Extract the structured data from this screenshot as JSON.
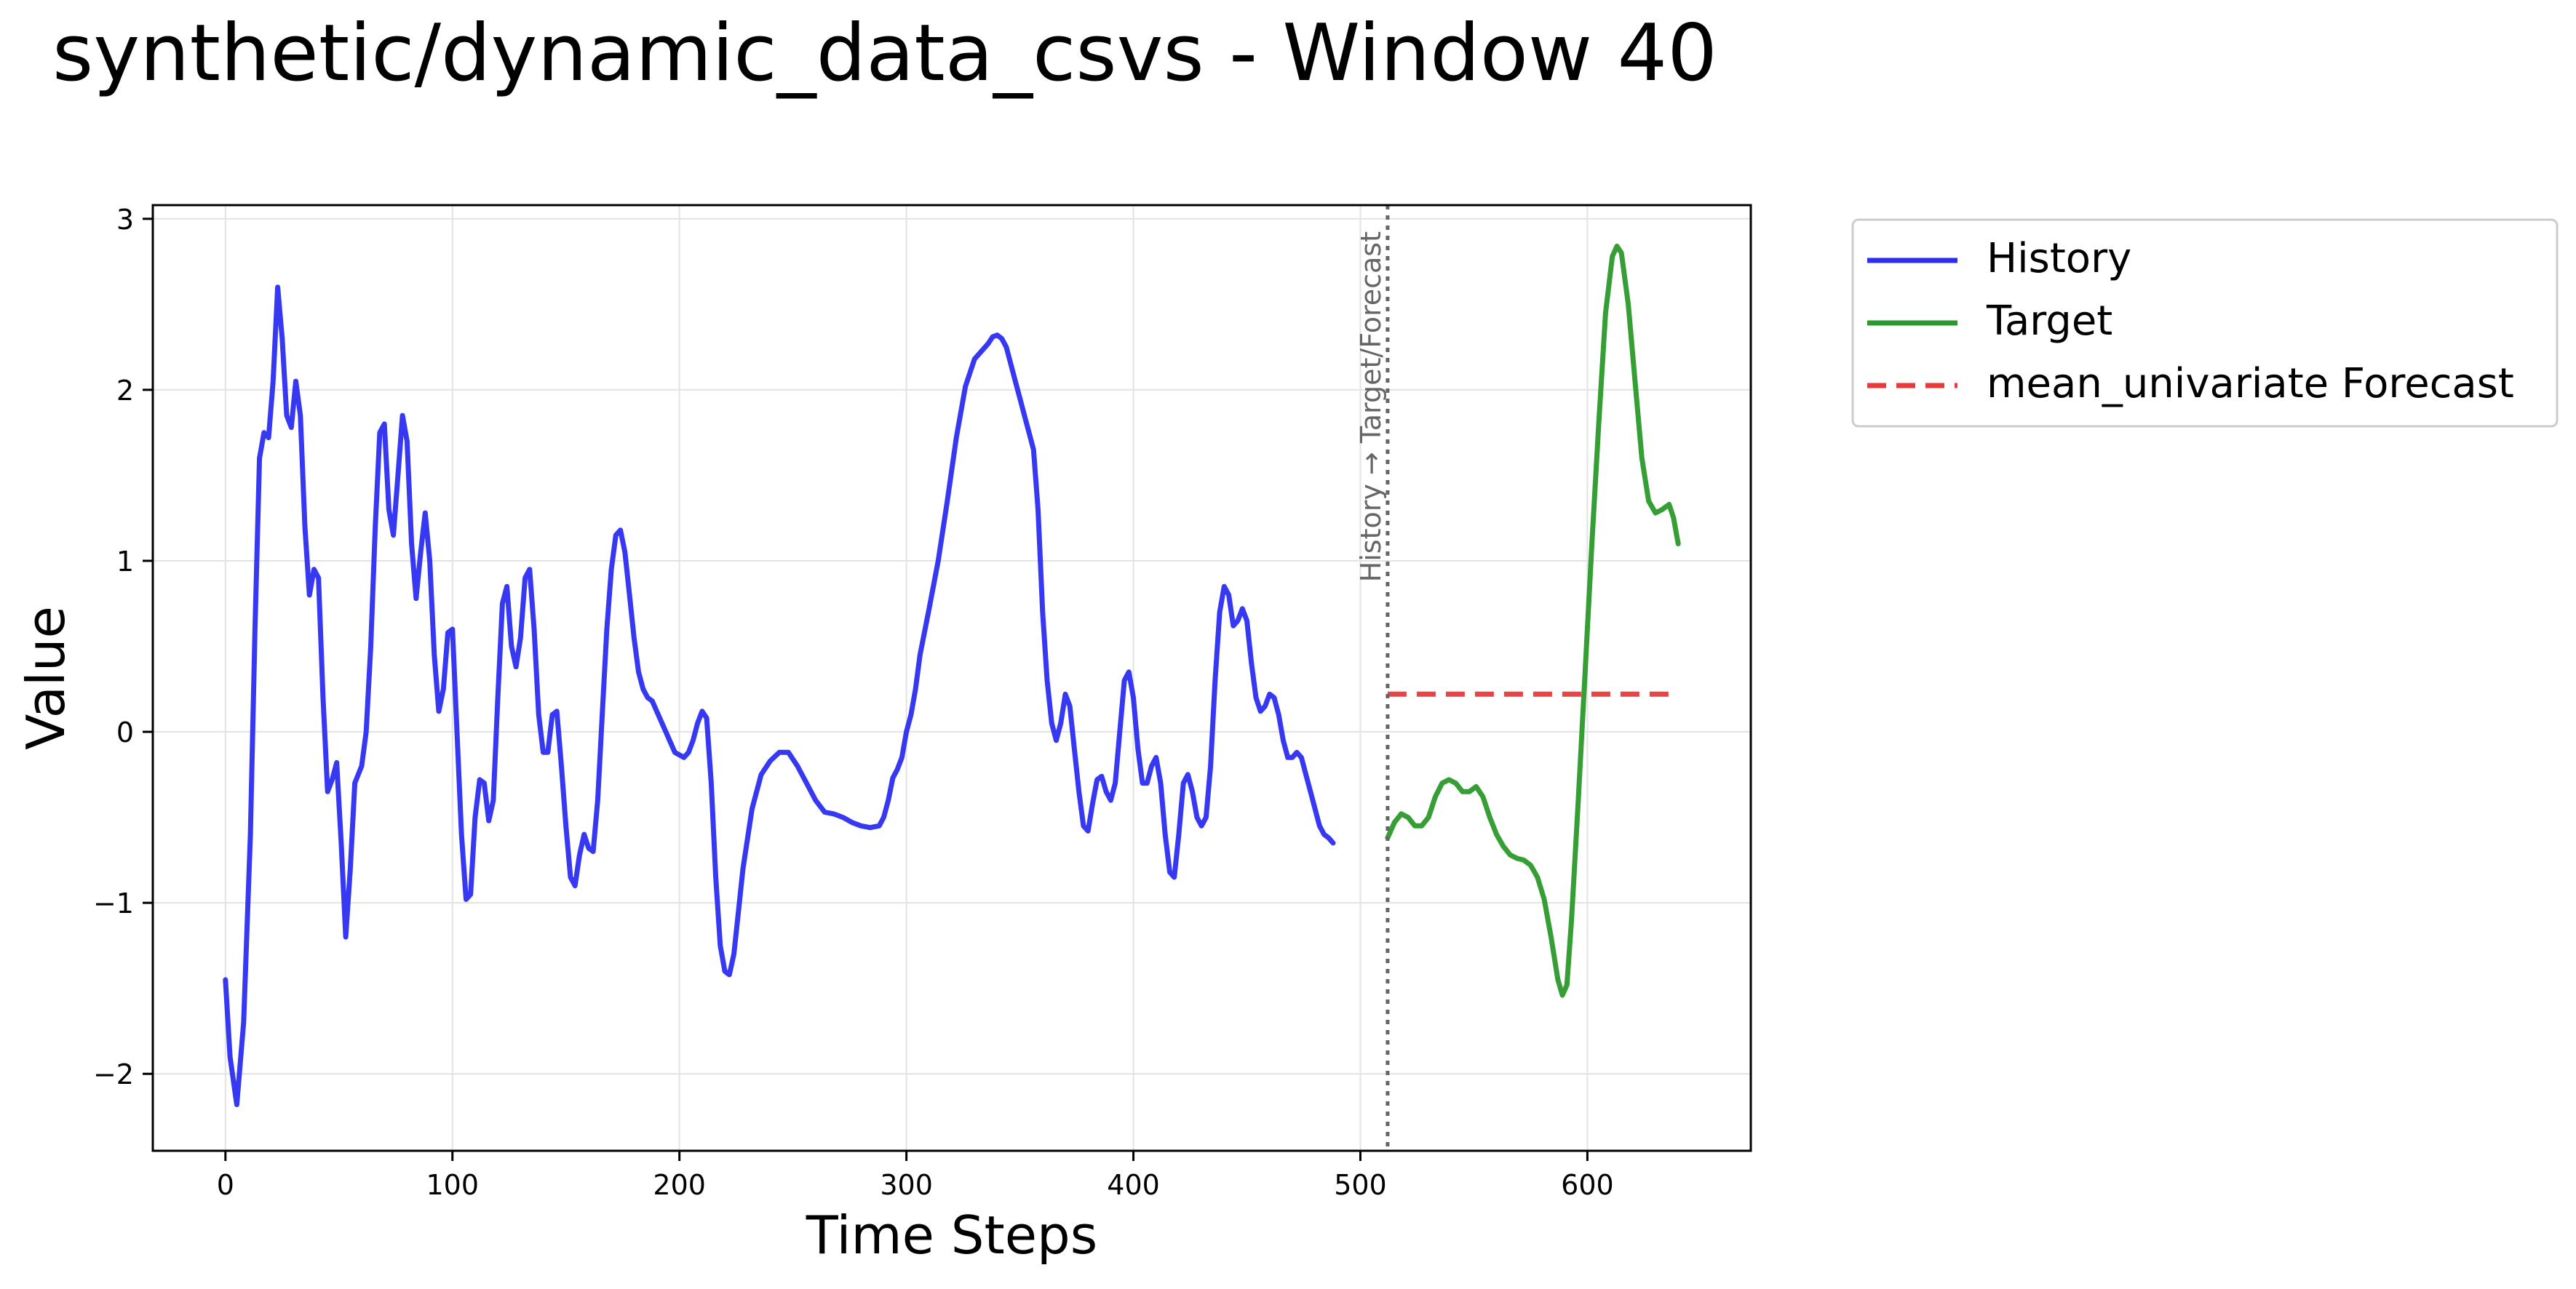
{
  "chart_data": {
    "type": "line",
    "title": "synthetic/dynamic_data_csvs - Window 40",
    "xlabel": "Time Steps",
    "ylabel": "Value",
    "xlim": [
      -32,
      672
    ],
    "ylim": [
      -2.45,
      3.08
    ],
    "xticks": [
      0,
      100,
      200,
      300,
      400,
      500,
      600
    ],
    "yticks": [
      -2,
      -1,
      0,
      1,
      2,
      3
    ],
    "xtick_labels": [
      "0",
      "100",
      "200",
      "300",
      "400",
      "500",
      "600"
    ],
    "ytick_labels": [
      "−2",
      "−1",
      "0",
      "1",
      "2",
      "3"
    ],
    "grid": true,
    "legend_position": "outside-top-right",
    "divider": {
      "x": 512,
      "label": "History → Target/Forecast",
      "color": "#666666"
    },
    "series": [
      {
        "name": "History",
        "color": "#2b2ef0",
        "style": "solid",
        "points": [
          [
            0,
            -1.45
          ],
          [
            2,
            -1.9
          ],
          [
            5,
            -2.18
          ],
          [
            8,
            -1.7
          ],
          [
            11,
            -0.6
          ],
          [
            13,
            0.6
          ],
          [
            15,
            1.6
          ],
          [
            17,
            1.75
          ],
          [
            19,
            1.72
          ],
          [
            21,
            2.05
          ],
          [
            23,
            2.6
          ],
          [
            25,
            2.3
          ],
          [
            27,
            1.85
          ],
          [
            29,
            1.78
          ],
          [
            31,
            2.05
          ],
          [
            33,
            1.85
          ],
          [
            35,
            1.2
          ],
          [
            37,
            0.8
          ],
          [
            39,
            0.95
          ],
          [
            41,
            0.9
          ],
          [
            43,
            0.2
          ],
          [
            45,
            -0.35
          ],
          [
            47,
            -0.28
          ],
          [
            49,
            -0.18
          ],
          [
            51,
            -0.65
          ],
          [
            53,
            -1.2
          ],
          [
            55,
            -0.8
          ],
          [
            57,
            -0.3
          ],
          [
            60,
            -0.2
          ],
          [
            62,
            0.0
          ],
          [
            64,
            0.5
          ],
          [
            66,
            1.2
          ],
          [
            68,
            1.75
          ],
          [
            70,
            1.8
          ],
          [
            72,
            1.3
          ],
          [
            74,
            1.15
          ],
          [
            76,
            1.5
          ],
          [
            78,
            1.85
          ],
          [
            80,
            1.7
          ],
          [
            82,
            1.1
          ],
          [
            84,
            0.78
          ],
          [
            86,
            1.05
          ],
          [
            88,
            1.28
          ],
          [
            90,
            1.0
          ],
          [
            92,
            0.45
          ],
          [
            94,
            0.12
          ],
          [
            96,
            0.25
          ],
          [
            98,
            0.58
          ],
          [
            100,
            0.6
          ],
          [
            102,
            0.0
          ],
          [
            104,
            -0.6
          ],
          [
            106,
            -0.98
          ],
          [
            108,
            -0.95
          ],
          [
            110,
            -0.5
          ],
          [
            112,
            -0.28
          ],
          [
            114,
            -0.3
          ],
          [
            116,
            -0.52
          ],
          [
            118,
            -0.4
          ],
          [
            120,
            0.2
          ],
          [
            122,
            0.75
          ],
          [
            124,
            0.85
          ],
          [
            126,
            0.5
          ],
          [
            128,
            0.38
          ],
          [
            130,
            0.55
          ],
          [
            132,
            0.9
          ],
          [
            134,
            0.95
          ],
          [
            136,
            0.6
          ],
          [
            138,
            0.1
          ],
          [
            140,
            -0.12
          ],
          [
            142,
            -0.12
          ],
          [
            144,
            0.1
          ],
          [
            146,
            0.12
          ],
          [
            148,
            -0.2
          ],
          [
            150,
            -0.55
          ],
          [
            152,
            -0.85
          ],
          [
            154,
            -0.9
          ],
          [
            156,
            -0.72
          ],
          [
            158,
            -0.6
          ],
          [
            160,
            -0.68
          ],
          [
            162,
            -0.7
          ],
          [
            164,
            -0.4
          ],
          [
            166,
            0.1
          ],
          [
            168,
            0.6
          ],
          [
            170,
            0.95
          ],
          [
            172,
            1.15
          ],
          [
            174,
            1.18
          ],
          [
            176,
            1.05
          ],
          [
            178,
            0.8
          ],
          [
            180,
            0.55
          ],
          [
            182,
            0.35
          ],
          [
            184,
            0.25
          ],
          [
            186,
            0.2
          ],
          [
            188,
            0.18
          ],
          [
            190,
            0.12
          ],
          [
            194,
            0.0
          ],
          [
            198,
            -0.12
          ],
          [
            202,
            -0.15
          ],
          [
            204,
            -0.12
          ],
          [
            206,
            -0.05
          ],
          [
            208,
            0.05
          ],
          [
            210,
            0.12
          ],
          [
            212,
            0.08
          ],
          [
            214,
            -0.3
          ],
          [
            216,
            -0.85
          ],
          [
            218,
            -1.25
          ],
          [
            220,
            -1.4
          ],
          [
            222,
            -1.42
          ],
          [
            224,
            -1.3
          ],
          [
            226,
            -1.05
          ],
          [
            228,
            -0.8
          ],
          [
            232,
            -0.45
          ],
          [
            236,
            -0.25
          ],
          [
            240,
            -0.17
          ],
          [
            244,
            -0.12
          ],
          [
            248,
            -0.12
          ],
          [
            252,
            -0.2
          ],
          [
            256,
            -0.3
          ],
          [
            260,
            -0.4
          ],
          [
            264,
            -0.47
          ],
          [
            268,
            -0.48
          ],
          [
            272,
            -0.5
          ],
          [
            276,
            -0.53
          ],
          [
            280,
            -0.55
          ],
          [
            284,
            -0.56
          ],
          [
            288,
            -0.55
          ],
          [
            290,
            -0.5
          ],
          [
            292,
            -0.4
          ],
          [
            294,
            -0.27
          ],
          [
            296,
            -0.22
          ],
          [
            298,
            -0.15
          ],
          [
            300,
            -0.0
          ],
          [
            302,
            0.1
          ],
          [
            304,
            0.25
          ],
          [
            306,
            0.45
          ],
          [
            310,
            0.72
          ],
          [
            314,
            1.0
          ],
          [
            318,
            1.35
          ],
          [
            322,
            1.72
          ],
          [
            326,
            2.02
          ],
          [
            330,
            2.18
          ],
          [
            334,
            2.24
          ],
          [
            336,
            2.27
          ],
          [
            338,
            2.31
          ],
          [
            340,
            2.32
          ],
          [
            342,
            2.3
          ],
          [
            344,
            2.25
          ],
          [
            346,
            2.15
          ],
          [
            348,
            2.05
          ],
          [
            350,
            1.95
          ],
          [
            352,
            1.85
          ],
          [
            354,
            1.75
          ],
          [
            356,
            1.65
          ],
          [
            358,
            1.3
          ],
          [
            360,
            0.7
          ],
          [
            362,
            0.3
          ],
          [
            364,
            0.05
          ],
          [
            366,
            -0.05
          ],
          [
            368,
            0.05
          ],
          [
            370,
            0.22
          ],
          [
            372,
            0.15
          ],
          [
            374,
            -0.1
          ],
          [
            376,
            -0.35
          ],
          [
            378,
            -0.55
          ],
          [
            380,
            -0.58
          ],
          [
            382,
            -0.42
          ],
          [
            384,
            -0.28
          ],
          [
            386,
            -0.26
          ],
          [
            388,
            -0.35
          ],
          [
            390,
            -0.4
          ],
          [
            392,
            -0.3
          ],
          [
            394,
            0.0
          ],
          [
            396,
            0.3
          ],
          [
            398,
            0.35
          ],
          [
            400,
            0.2
          ],
          [
            402,
            -0.1
          ],
          [
            404,
            -0.3
          ],
          [
            406,
            -0.3
          ],
          [
            408,
            -0.2
          ],
          [
            410,
            -0.15
          ],
          [
            412,
            -0.3
          ],
          [
            414,
            -0.6
          ],
          [
            416,
            -0.82
          ],
          [
            418,
            -0.85
          ],
          [
            420,
            -0.6
          ],
          [
            422,
            -0.3
          ],
          [
            424,
            -0.25
          ],
          [
            426,
            -0.35
          ],
          [
            428,
            -0.5
          ],
          [
            430,
            -0.55
          ],
          [
            432,
            -0.5
          ],
          [
            434,
            -0.2
          ],
          [
            436,
            0.3
          ],
          [
            438,
            0.7
          ],
          [
            440,
            0.85
          ],
          [
            442,
            0.8
          ],
          [
            444,
            0.62
          ],
          [
            446,
            0.65
          ],
          [
            448,
            0.72
          ],
          [
            450,
            0.65
          ],
          [
            452,
            0.4
          ],
          [
            454,
            0.2
          ],
          [
            456,
            0.12
          ],
          [
            458,
            0.15
          ],
          [
            460,
            0.22
          ],
          [
            462,
            0.2
          ],
          [
            464,
            0.1
          ],
          [
            466,
            -0.05
          ],
          [
            468,
            -0.15
          ],
          [
            470,
            -0.15
          ],
          [
            472,
            -0.12
          ],
          [
            474,
            -0.15
          ],
          [
            476,
            -0.25
          ],
          [
            478,
            -0.35
          ],
          [
            480,
            -0.45
          ],
          [
            482,
            -0.55
          ],
          [
            484,
            -0.6
          ],
          [
            486,
            -0.62
          ],
          [
            488,
            -0.65
          ]
        ]
      },
      {
        "name": "Target",
        "color": "#2a9a2a",
        "style": "solid",
        "points": [
          [
            512,
            -0.62
          ],
          [
            515,
            -0.53
          ],
          [
            518,
            -0.48
          ],
          [
            521,
            -0.5
          ],
          [
            524,
            -0.55
          ],
          [
            527,
            -0.55
          ],
          [
            530,
            -0.5
          ],
          [
            533,
            -0.38
          ],
          [
            536,
            -0.3
          ],
          [
            539,
            -0.28
          ],
          [
            542,
            -0.3
          ],
          [
            545,
            -0.35
          ],
          [
            548,
            -0.35
          ],
          [
            551,
            -0.32
          ],
          [
            554,
            -0.38
          ],
          [
            557,
            -0.5
          ],
          [
            560,
            -0.6
          ],
          [
            563,
            -0.67
          ],
          [
            566,
            -0.72
          ],
          [
            569,
            -0.74
          ],
          [
            572,
            -0.75
          ],
          [
            575,
            -0.78
          ],
          [
            578,
            -0.85
          ],
          [
            581,
            -0.98
          ],
          [
            584,
            -1.2
          ],
          [
            587,
            -1.45
          ],
          [
            589,
            -1.54
          ],
          [
            591,
            -1.48
          ],
          [
            593,
            -1.1
          ],
          [
            596,
            -0.4
          ],
          [
            599,
            0.35
          ],
          [
            602,
            1.1
          ],
          [
            605,
            1.8
          ],
          [
            608,
            2.45
          ],
          [
            611,
            2.78
          ],
          [
            613,
            2.84
          ],
          [
            615,
            2.8
          ],
          [
            618,
            2.5
          ],
          [
            621,
            2.05
          ],
          [
            624,
            1.6
          ],
          [
            627,
            1.35
          ],
          [
            630,
            1.28
          ],
          [
            633,
            1.3
          ],
          [
            636,
            1.33
          ],
          [
            638,
            1.25
          ],
          [
            640,
            1.1
          ]
        ]
      },
      {
        "name": "mean_univariate Forecast",
        "color": "#e83a3a",
        "style": "dashed",
        "points": [
          [
            512,
            0.22
          ],
          [
            640,
            0.22
          ]
        ]
      }
    ]
  }
}
